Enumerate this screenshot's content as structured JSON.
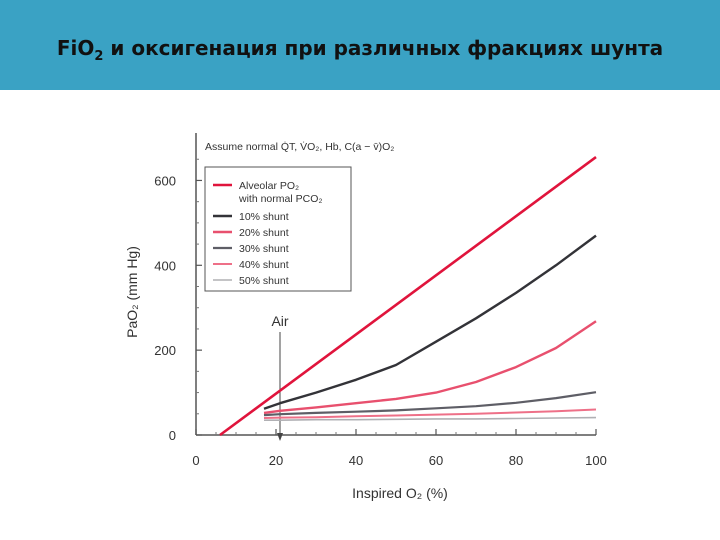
{
  "slide": {
    "title_prefix": "FiO",
    "title_sub": "2",
    "title_rest": " и оксигенация при различных фракциях шунта",
    "header_color": "#3aa2c4"
  },
  "chart_data": {
    "type": "line",
    "title": "",
    "note": "Assume normal Q̇T, V̇O₂, Hb, C(a − v̄)O₂",
    "xlabel": "Inspired O₂ (%)",
    "ylabel": "PaO₂ (mm Hg)",
    "xlim": [
      0,
      100
    ],
    "ylim": [
      0,
      660
    ],
    "xticks": [
      0,
      20,
      40,
      60,
      80,
      100
    ],
    "yticks": [
      0,
      200,
      400,
      600
    ],
    "grid": false,
    "legend_position": "top-left",
    "annotation": {
      "label": "Air",
      "x": 21
    },
    "series": [
      {
        "name": "Alveolar PO₂ with normal PCO₂",
        "color": "#e0143c",
        "width": 2.6,
        "x": [
          6,
          100
        ],
        "y": [
          0,
          655
        ]
      },
      {
        "name": "10% shunt",
        "color": "#333338",
        "width": 2.4,
        "x": [
          17,
          21,
          30,
          40,
          50,
          60,
          70,
          80,
          90,
          100
        ],
        "y": [
          62,
          75,
          100,
          130,
          165,
          220,
          275,
          335,
          400,
          470
        ]
      },
      {
        "name": "20% shunt",
        "color": "#e8506e",
        "width": 2.4,
        "x": [
          17,
          21,
          30,
          40,
          50,
          60,
          70,
          80,
          90,
          100
        ],
        "y": [
          52,
          57,
          65,
          75,
          85,
          100,
          125,
          160,
          205,
          268
        ]
      },
      {
        "name": "30% shunt",
        "color": "#5e5e66",
        "width": 2.2,
        "x": [
          17,
          21,
          30,
          40,
          50,
          60,
          70,
          80,
          90,
          100
        ],
        "y": [
          47,
          49,
          52,
          55,
          58,
          63,
          68,
          76,
          87,
          101
        ]
      },
      {
        "name": "40% shunt",
        "color": "#ee7088",
        "width": 2.0,
        "x": [
          17,
          21,
          30,
          40,
          50,
          60,
          70,
          80,
          90,
          100
        ],
        "y": [
          40,
          41,
          42,
          44,
          46,
          48,
          50,
          53,
          56,
          60
        ]
      },
      {
        "name": "50% shunt",
        "color": "#b0b0b4",
        "width": 1.6,
        "x": [
          17,
          21,
          30,
          40,
          50,
          60,
          70,
          80,
          90,
          100
        ],
        "y": [
          35,
          35,
          36,
          36,
          37,
          38,
          38,
          39,
          40,
          41
        ]
      }
    ]
  }
}
